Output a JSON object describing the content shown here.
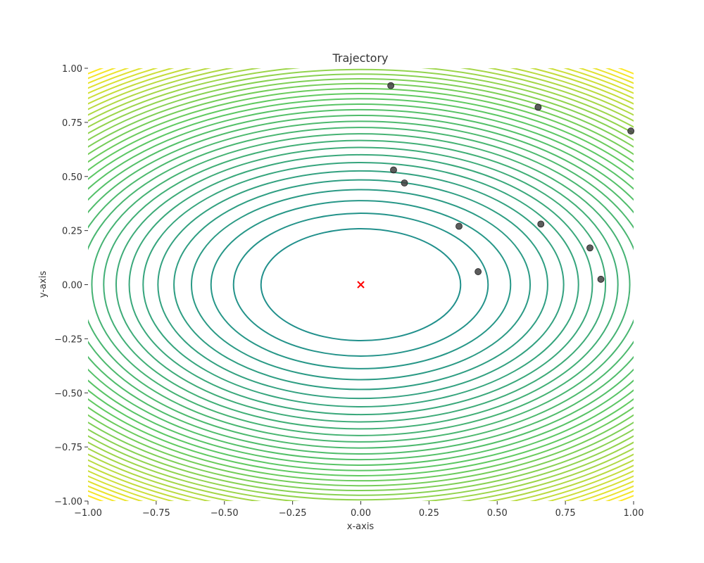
{
  "chart_data": {
    "type": "scatter",
    "title": "Trajectory",
    "xlabel": "x-axis",
    "ylabel": "y-axis",
    "xlim": [
      -1.0,
      1.0
    ],
    "ylim": [
      -1.0,
      1.0
    ],
    "x_ticks": [
      -1.0,
      -0.75,
      -0.5,
      -0.25,
      0.0,
      0.25,
      0.5,
      0.75,
      1.0
    ],
    "y_ticks": [
      -1.0,
      -0.75,
      -0.5,
      -0.25,
      0.0,
      0.25,
      0.5,
      0.75,
      1.0
    ],
    "x_tick_labels": [
      "−1.00",
      "−0.75",
      "−0.50",
      "−0.25",
      "0.00",
      "0.25",
      "0.50",
      "0.75",
      "1.00"
    ],
    "y_tick_labels": [
      "−1.00",
      "−0.75",
      "−0.50",
      "−0.25",
      "0.00",
      "0.25",
      "0.50",
      "0.75",
      "1.00"
    ],
    "grid": false,
    "background": {
      "type": "contour",
      "function": "x^2 + 2*y^2",
      "colormap": "viridis"
    },
    "points": [
      {
        "x": 0.11,
        "y": 0.92
      },
      {
        "x": 0.65,
        "y": 0.82
      },
      {
        "x": 0.99,
        "y": 0.71
      },
      {
        "x": 0.12,
        "y": 0.53
      },
      {
        "x": 0.16,
        "y": 0.47
      },
      {
        "x": 0.66,
        "y": 0.28
      },
      {
        "x": 0.36,
        "y": 0.27
      },
      {
        "x": 0.84,
        "y": 0.17
      },
      {
        "x": 0.43,
        "y": 0.06
      },
      {
        "x": 0.88,
        "y": 0.025
      }
    ],
    "target": {
      "x": 0.0,
      "y": 0.0,
      "marker": "x",
      "color": "#ff0000"
    },
    "point_color": "#404040"
  }
}
